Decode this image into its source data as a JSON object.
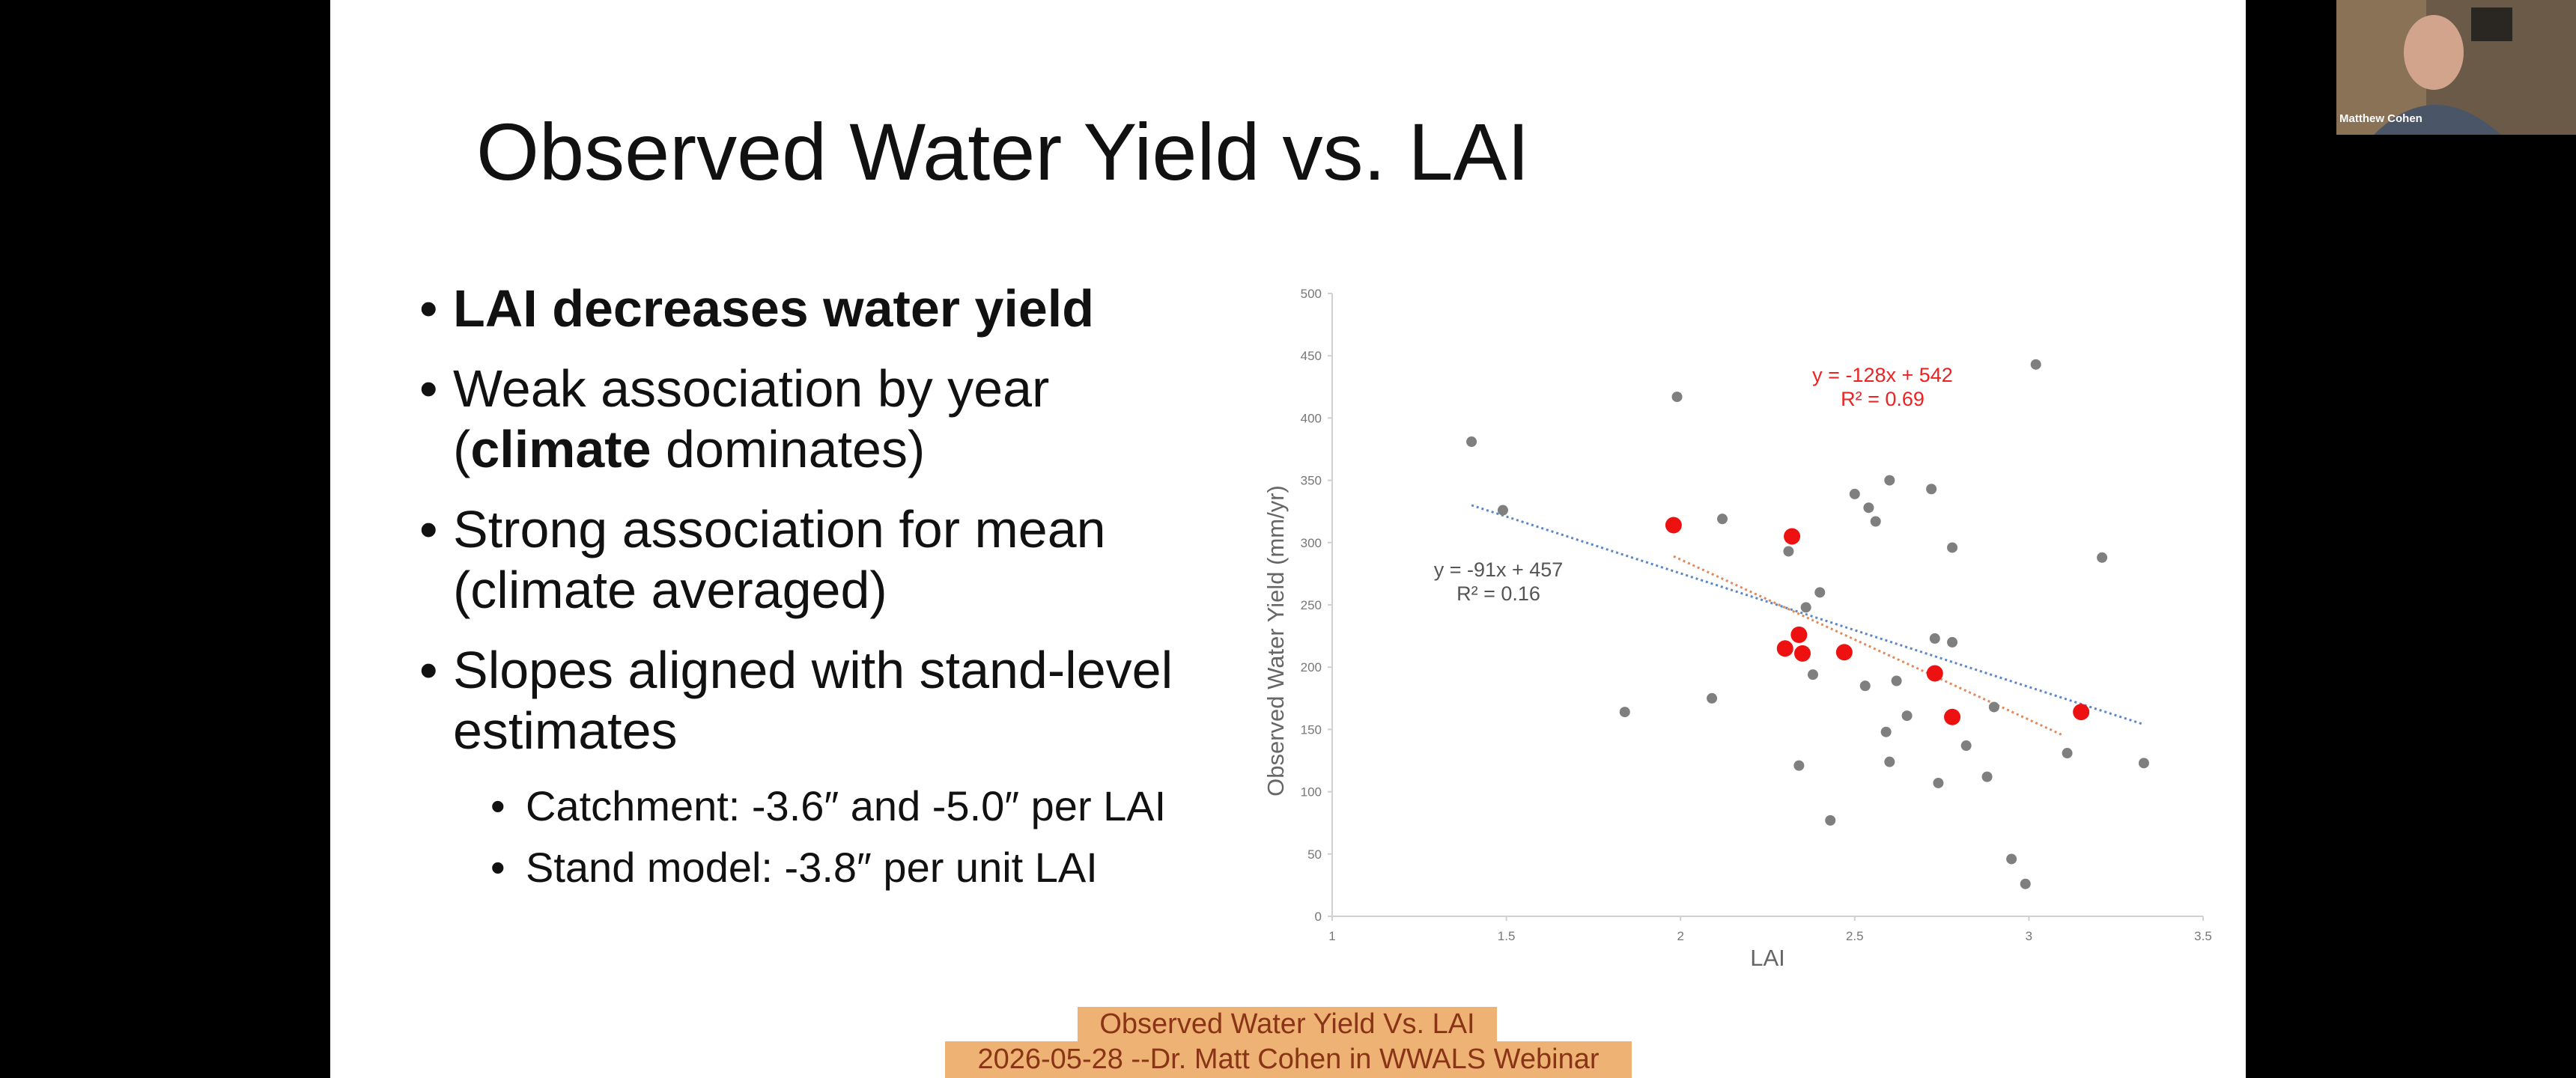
{
  "slide": {
    "title": "Observed Water Yield vs. LAI",
    "bullets": [
      {
        "level": 1,
        "parts": [
          {
            "text": "LAI decreases water yield",
            "bold": true
          }
        ]
      },
      {
        "level": 1,
        "parts": [
          {
            "text": "Weak association by year (",
            "bold": false
          },
          {
            "text": "climate",
            "bold": true
          },
          {
            "text": " dominates)",
            "bold": false
          }
        ]
      },
      {
        "level": 1,
        "parts": [
          {
            "text": "Strong association for mean (climate averaged)",
            "bold": false
          }
        ]
      },
      {
        "level": 1,
        "parts": [
          {
            "text": "Slopes aligned with stand-level estimates",
            "bold": false
          }
        ]
      },
      {
        "level": 2,
        "parts": [
          {
            "text": "Catchment: -3.6″ and -5.0″ per LAI",
            "bold": false
          }
        ]
      },
      {
        "level": 2,
        "parts": [
          {
            "text": "Stand model: -3.8″ per unit LAI",
            "bold": false
          }
        ]
      }
    ]
  },
  "chart_data": {
    "type": "scatter",
    "xlabel": "LAI",
    "ylabel": "Observed Water Yield (mm/yr)",
    "xlim": [
      1,
      3.5
    ],
    "ylim": [
      0,
      500
    ],
    "xticks": [
      1,
      1.5,
      2,
      2.5,
      3,
      3.5
    ],
    "yticks": [
      0,
      50,
      100,
      150,
      200,
      250,
      300,
      350,
      400,
      450,
      500
    ],
    "series": [
      {
        "color": "#7f7f7f",
        "x": [
          1.4,
          1.49,
          1.99,
          1.84,
          2.12,
          2.09,
          2.31,
          2.36,
          2.4,
          2.38,
          2.34,
          2.43,
          2.5,
          2.54,
          2.56,
          2.6,
          2.53,
          2.62,
          2.59,
          2.6,
          2.65,
          2.72,
          2.78,
          2.73,
          2.78,
          2.82,
          2.74,
          2.9,
          2.88,
          3.02,
          2.95,
          2.99,
          3.11,
          3.21,
          3.33
        ],
        "values": [
          381,
          326,
          417,
          164,
          319,
          175,
          293,
          248,
          260,
          194,
          121,
          77,
          339,
          328,
          317,
          350,
          185,
          189,
          148,
          124,
          161,
          343,
          296,
          223,
          220,
          137,
          107,
          168,
          112,
          443,
          46,
          26,
          131,
          288,
          123
        ]
      },
      {
        "color": "#ee1111",
        "x": [
          1.98,
          2.32,
          2.34,
          2.3,
          2.35,
          2.47,
          2.73,
          2.78,
          3.15
        ],
        "values": [
          314,
          305,
          226,
          215,
          211,
          212,
          195,
          160,
          164
        ]
      }
    ],
    "trendlines": [
      {
        "color": "#5b87c9",
        "x": [
          1.4,
          3.33
        ],
        "values": [
          330,
          154
        ]
      },
      {
        "color": "#e08a5a",
        "x": [
          1.98,
          3.1
        ],
        "values": [
          289,
          145
        ]
      }
    ],
    "annotations": [
      {
        "color": "#ee2222",
        "lines": [
          "y = -128x + 542",
          "R² = 0.69"
        ]
      },
      {
        "color": "#555555",
        "lines": [
          "y = -91x + 457",
          "R² = 0.16"
        ]
      }
    ]
  },
  "webcam": {
    "name": "Matthew Cohen"
  },
  "caption": {
    "lines": [
      "Observed Water Yield Vs. LAI",
      "2026-05-28 --Dr. Matt Cohen in WWALS Webinar"
    ]
  }
}
